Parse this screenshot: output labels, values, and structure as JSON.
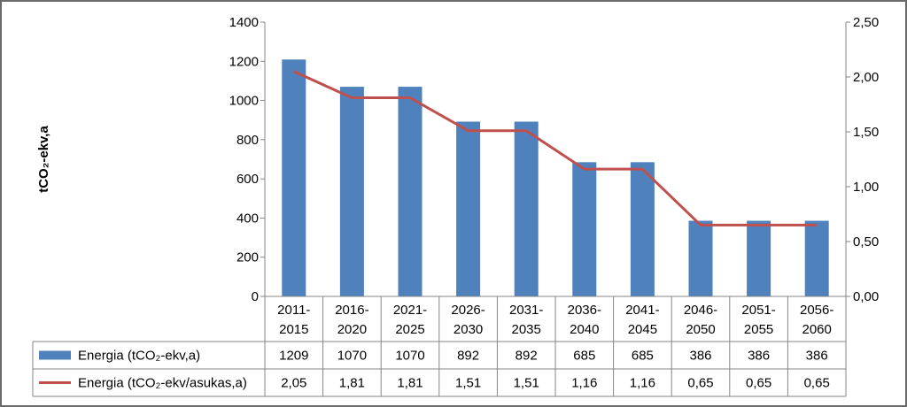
{
  "chart_data": {
    "type": "bar",
    "categories": [
      [
        "2011-",
        "2015"
      ],
      [
        "2016-",
        "2020"
      ],
      [
        "2021-",
        "2025"
      ],
      [
        "2026-",
        "2030"
      ],
      [
        "2031-",
        "2035"
      ],
      [
        "2036-",
        "2040"
      ],
      [
        "2041-",
        "2045"
      ],
      [
        "2046-",
        "2050"
      ],
      [
        "2051-",
        "2055"
      ],
      [
        "2056-",
        "2060"
      ]
    ],
    "ylabel": "tCO₂-ekv,a",
    "ylim": [
      0,
      1400
    ],
    "yticks": [
      "0",
      "200",
      "400",
      "600",
      "800",
      "1000",
      "1200",
      "1400"
    ],
    "y2lim": [
      0,
      2.5
    ],
    "y2ticks": [
      "0,00",
      "0,50",
      "1,00",
      "1,50",
      "2,00",
      "2,50"
    ],
    "series": [
      {
        "name": "Energia (tCO₂-ekv,a)",
        "type": "bar",
        "axis": "left",
        "color": "#4f81bd",
        "values": [
          1209,
          1070,
          1070,
          892,
          892,
          685,
          685,
          386,
          386,
          386
        ],
        "labels": [
          "1209",
          "1070",
          "1070",
          "892",
          "892",
          "685",
          "685",
          "386",
          "386",
          "386"
        ]
      },
      {
        "name": "Energia (tCO₂-ekv/asukas,a)",
        "type": "line",
        "axis": "right",
        "color": "#c0504d",
        "values": [
          2.05,
          1.81,
          1.81,
          1.51,
          1.51,
          1.16,
          1.16,
          0.65,
          0.65,
          0.65
        ],
        "labels": [
          "2,05",
          "1,81",
          "1,81",
          "1,51",
          "1,51",
          "1,16",
          "1,16",
          "0,65",
          "0,65",
          "0,65"
        ]
      }
    ],
    "legend": "data-table-left",
    "grid": false
  }
}
